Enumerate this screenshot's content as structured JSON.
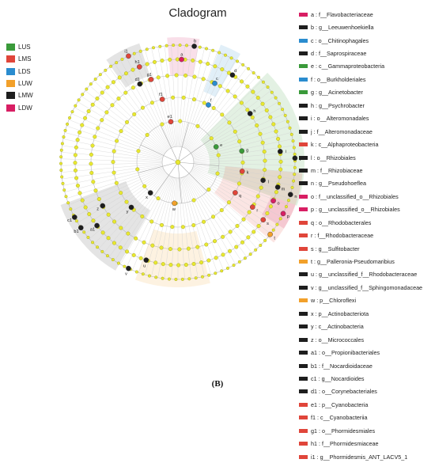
{
  "title": "Cladogram",
  "footer": "(B)",
  "groups": [
    {
      "name": "LUS",
      "color": "#3a9a3a"
    },
    {
      "name": "LMS",
      "color": "#e0453a"
    },
    {
      "name": "LDS",
      "color": "#2a8ccf"
    },
    {
      "name": "LUW",
      "color": "#f2a02a"
    },
    {
      "name": "LMW",
      "color": "#1e1e1e"
    },
    {
      "name": "LDW",
      "color": "#d81e63"
    }
  ],
  "legend": [
    {
      "text": "a : f__Flavobacteriaceae",
      "color": "#d81e63"
    },
    {
      "text": "b : g__Leeuwenhoekiella",
      "color": "#1e1e1e"
    },
    {
      "text": "c : o__Chitinophagales",
      "color": "#2a8ccf"
    },
    {
      "text": "d : f__Saprospiraceae",
      "color": "#1e1e1e"
    },
    {
      "text": "e : c__Gammaproteobacteria",
      "color": "#3a9a3a"
    },
    {
      "text": "f : o__Burkholderiales",
      "color": "#2a8ccf"
    },
    {
      "text": "g : g__Acinetobacter",
      "color": "#3a9a3a"
    },
    {
      "text": "h : g__Psychrobacter",
      "color": "#1e1e1e"
    },
    {
      "text": "i : o__Alteromonadales",
      "color": "#1e1e1e"
    },
    {
      "text": "j : f__Alteromonadaceae",
      "color": "#1e1e1e"
    },
    {
      "text": "k : c__Alphaproteobacteria",
      "color": "#e0453a"
    },
    {
      "text": "l : o__Rhizobiales",
      "color": "#1e1e1e"
    },
    {
      "text": "m : f__Rhizobiaceae",
      "color": "#1e1e1e"
    },
    {
      "text": "n : g__Pseudohoeflea",
      "color": "#1e1e1e"
    },
    {
      "text": "o : f__unclassified_o__Rhizobiales",
      "color": "#d81e63"
    },
    {
      "text": "p : g__unclassified_o__Rhizobiales",
      "color": "#d81e63"
    },
    {
      "text": "q : o__Rhodobacterales",
      "color": "#e0453a"
    },
    {
      "text": "r : f__Rhodobacteraceae",
      "color": "#e0453a"
    },
    {
      "text": "s : g__Sulfitobacter",
      "color": "#e0453a"
    },
    {
      "text": "t : g__Palleronia-Pseudomaribius",
      "color": "#f2a02a"
    },
    {
      "text": "u : g__unclassified_f__Rhodobacteraceae",
      "color": "#1e1e1e"
    },
    {
      "text": "v : g__unclassified_f__Sphingomonadaceae",
      "color": "#1e1e1e"
    },
    {
      "text": "w : p__Chloroflexi",
      "color": "#f2a02a"
    },
    {
      "text": "x : p__Actinobacteriota",
      "color": "#1e1e1e"
    },
    {
      "text": "y : c__Actinobacteria",
      "color": "#1e1e1e"
    },
    {
      "text": "z : o__Micrococcales",
      "color": "#1e1e1e"
    },
    {
      "text": "a1 : o__Propionibacteriales",
      "color": "#1e1e1e"
    },
    {
      "text": "b1 : f__Nocardioidaceae",
      "color": "#1e1e1e"
    },
    {
      "text": "c1 : g__Nocardioides",
      "color": "#1e1e1e"
    },
    {
      "text": "d1 : o__Corynebacteriales",
      "color": "#1e1e1e"
    },
    {
      "text": "e1 : p__Cyanobacteria",
      "color": "#e0453a"
    },
    {
      "text": "f1 : c__Cyanobacteriia",
      "color": "#e0453a"
    },
    {
      "text": "g1 : o__Phormidesmiales",
      "color": "#e0453a"
    },
    {
      "text": "h1 : f__Phormidesmiaceae",
      "color": "#e0453a"
    },
    {
      "text": "i1 : g__Phormidesmis_ANT_LACV5_1",
      "color": "#e0453a"
    }
  ],
  "clades": [
    {
      "label": "a",
      "color": "#d81e63"
    },
    {
      "label": "b",
      "color": "#1e1e1e"
    },
    {
      "label": "c",
      "color": "#2a8ccf"
    },
    {
      "label": "d",
      "color": "#1e1e1e"
    },
    {
      "label": "e",
      "color": "#3a9a3a"
    },
    {
      "label": "f",
      "color": "#2a8ccf"
    },
    {
      "label": "g",
      "color": "#3a9a3a"
    },
    {
      "label": "h",
      "color": "#1e1e1e"
    },
    {
      "label": "i",
      "color": "#1e1e1e"
    },
    {
      "label": "j",
      "color": "#1e1e1e"
    },
    {
      "label": "k",
      "color": "#e0453a"
    },
    {
      "label": "l",
      "color": "#1e1e1e"
    },
    {
      "label": "m",
      "color": "#1e1e1e"
    },
    {
      "label": "n",
      "color": "#1e1e1e"
    },
    {
      "label": "o",
      "color": "#d81e63"
    },
    {
      "label": "p",
      "color": "#d81e63"
    },
    {
      "label": "q",
      "color": "#e0453a"
    },
    {
      "label": "r",
      "color": "#e0453a"
    },
    {
      "label": "s",
      "color": "#e0453a"
    },
    {
      "label": "t",
      "color": "#f2a02a"
    },
    {
      "label": "u",
      "color": "#1e1e1e"
    },
    {
      "label": "v",
      "color": "#1e1e1e"
    },
    {
      "label": "w",
      "color": "#f2a02a"
    },
    {
      "label": "x",
      "color": "#1e1e1e"
    },
    {
      "label": "y",
      "color": "#1e1e1e"
    },
    {
      "label": "z",
      "color": "#1e1e1e"
    },
    {
      "label": "a1",
      "color": "#1e1e1e"
    },
    {
      "label": "b1",
      "color": "#1e1e1e"
    },
    {
      "label": "c1",
      "color": "#1e1e1e"
    },
    {
      "label": "d1",
      "color": "#1e1e1e"
    },
    {
      "label": "e1",
      "color": "#e0453a"
    },
    {
      "label": "f1",
      "color": "#e0453a"
    },
    {
      "label": "g1",
      "color": "#e0453a"
    },
    {
      "label": "h1",
      "color": "#e0453a"
    },
    {
      "label": "i1",
      "color": "#e0453a"
    }
  ]
}
